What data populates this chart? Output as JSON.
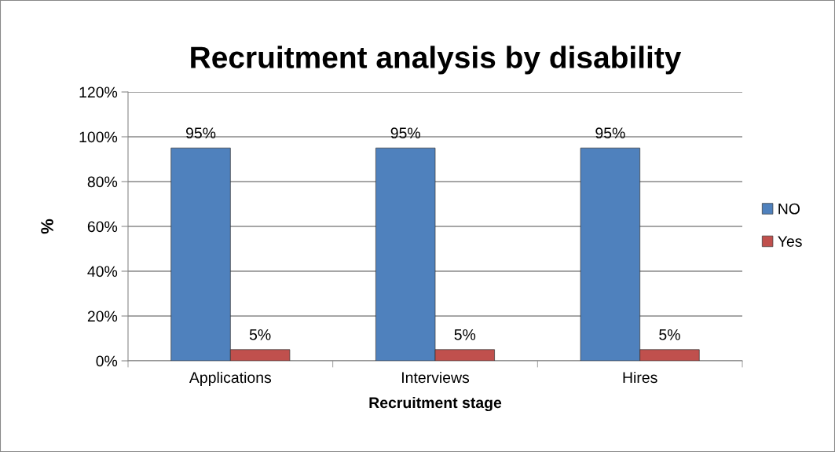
{
  "chart_data": {
    "type": "bar",
    "title": "Recruitment analysis by disability",
    "xlabel": "Recruitment stage",
    "ylabel": "%",
    "categories": [
      "Applications",
      "Interviews",
      "Hires"
    ],
    "series": [
      {
        "name": "NO",
        "color": "#4f81bd",
        "values": [
          95,
          95,
          95
        ],
        "value_labels": [
          "95%",
          "95%",
          "95%"
        ]
      },
      {
        "name": "Yes",
        "color": "#c0504d",
        "values": [
          5,
          5,
          5
        ],
        "value_labels": [
          "5%",
          "5%",
          "5%"
        ]
      }
    ],
    "ylim": [
      0,
      120
    ],
    "yticks": [
      {
        "value": 0,
        "label": "0%"
      },
      {
        "value": 20,
        "label": "20%"
      },
      {
        "value": 40,
        "label": "40%"
      },
      {
        "value": 60,
        "label": "60%"
      },
      {
        "value": 80,
        "label": "80%"
      },
      {
        "value": 100,
        "label": "100%"
      },
      {
        "value": 120,
        "label": "120%"
      }
    ],
    "grid": "y",
    "legend": "right"
  }
}
